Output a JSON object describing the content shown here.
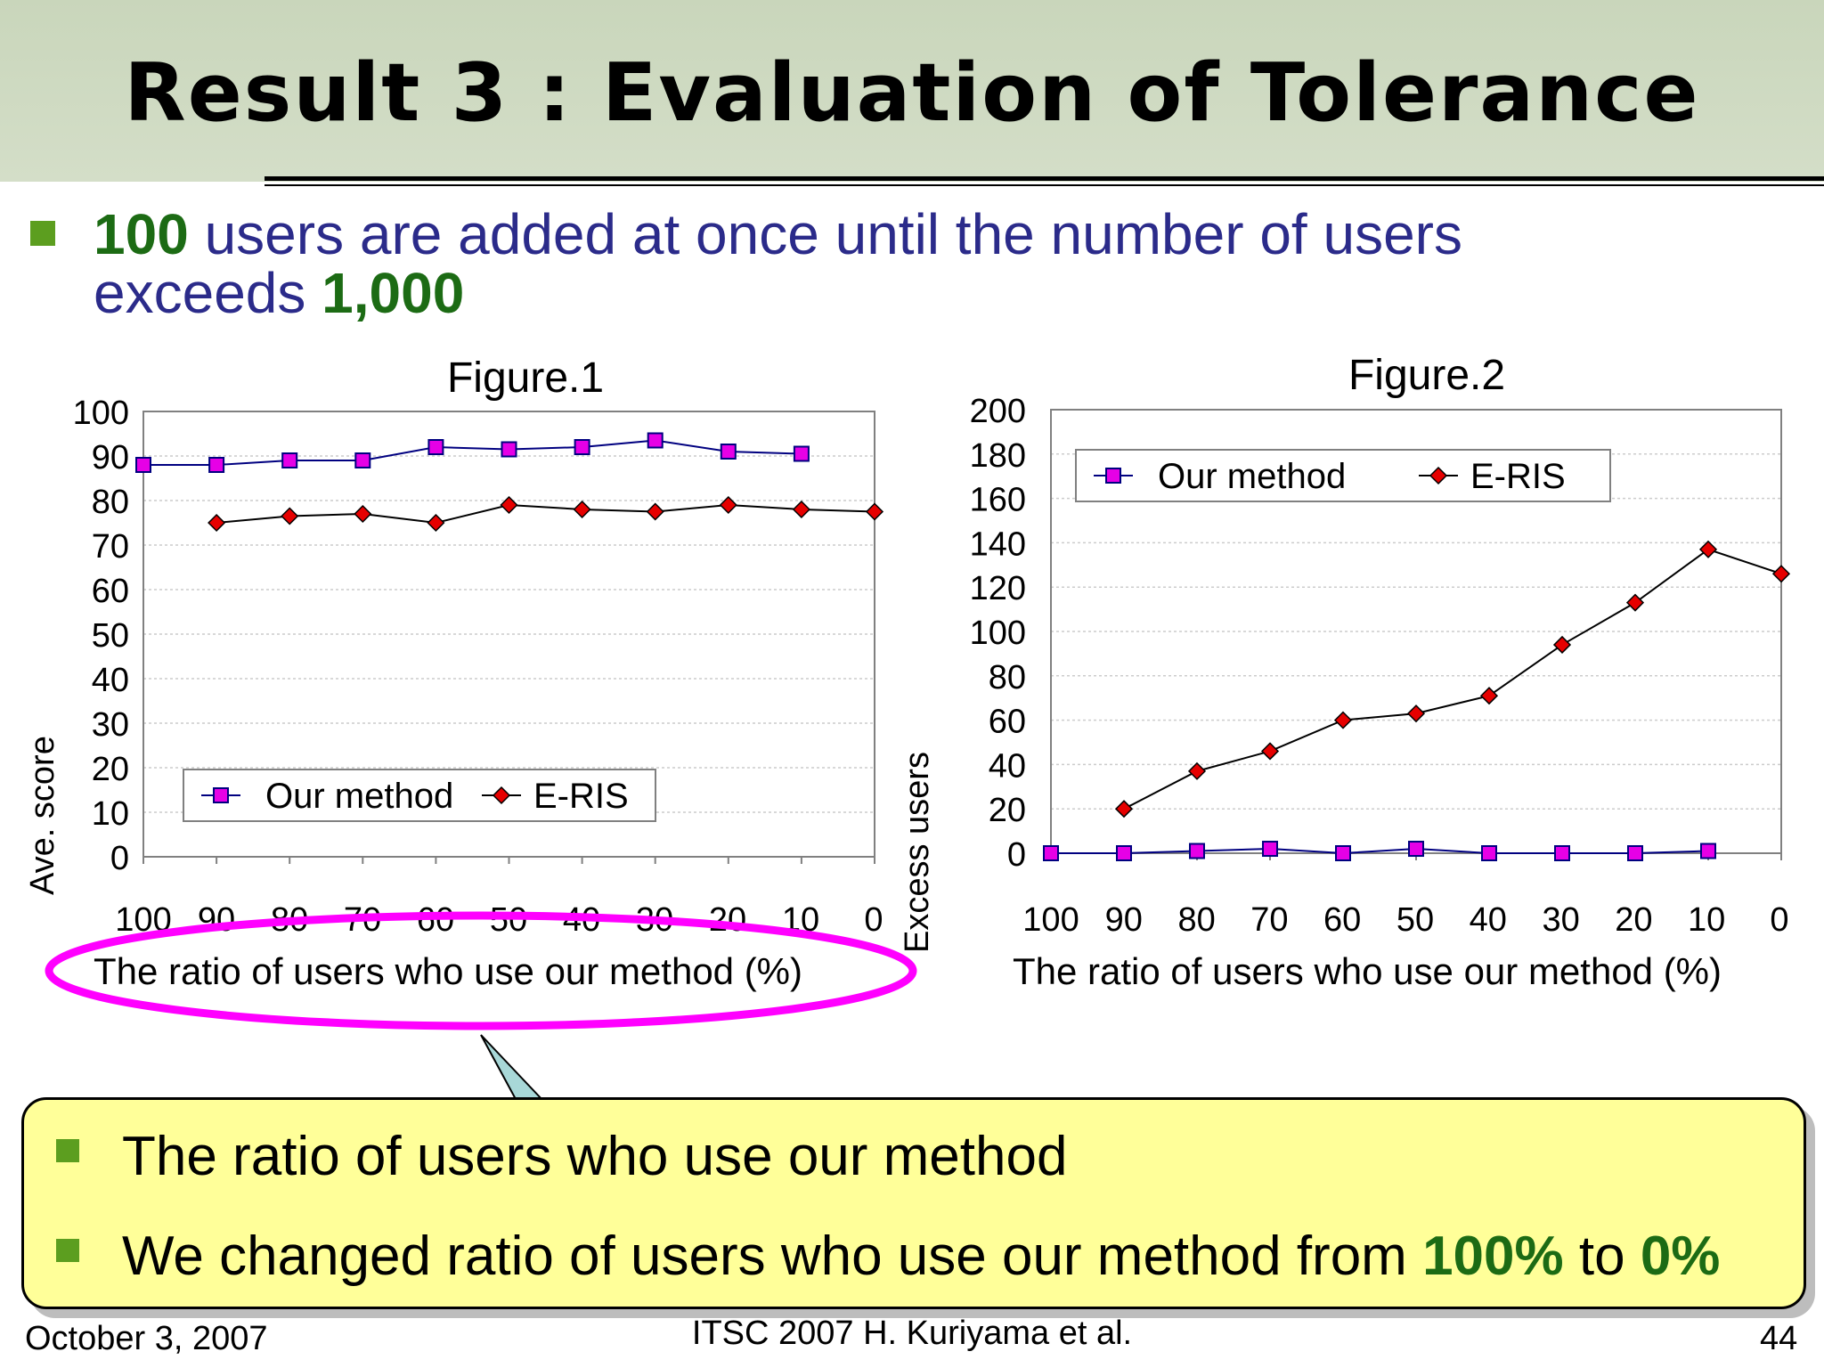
{
  "title": "Result 3 : Evaluation of Tolerance",
  "intro": {
    "num1": "100",
    "text1": " users are added at once until the number of users",
    "text2": "exceeds ",
    "num2": "1,000"
  },
  "chart_data": [
    {
      "type": "line",
      "title": "Figure.1",
      "xlabel": "The ratio of users who use our method (%)",
      "ylabel": "Ave. score",
      "categories": [
        "100",
        "90",
        "80",
        "70",
        "60",
        "50",
        "40",
        "30",
        "20",
        "10",
        "0"
      ],
      "ylim": [
        0,
        100
      ],
      "yticks": [
        "0",
        "10",
        "20",
        "30",
        "40",
        "50",
        "60",
        "70",
        "80",
        "90",
        "100"
      ],
      "grid": true,
      "legend": "bottom-left",
      "series": [
        {
          "name": "Our method",
          "values": [
            88,
            88,
            89,
            89,
            92,
            91.5,
            92,
            93.5,
            91,
            90.5,
            null
          ],
          "color": "#e600e6"
        },
        {
          "name": "E-RIS",
          "values": [
            null,
            75,
            76.5,
            77,
            75,
            79,
            78,
            77.5,
            79,
            78,
            77.5
          ],
          "color": "#e60000"
        }
      ]
    },
    {
      "type": "line",
      "title": "Figure.2",
      "xlabel": "The ratio of users who use our method (%)",
      "ylabel": "Excess users",
      "categories": [
        "100",
        "90",
        "80",
        "70",
        "60",
        "50",
        "40",
        "30",
        "20",
        "10",
        "0"
      ],
      "ylim": [
        0,
        200
      ],
      "yticks": [
        "0",
        "20",
        "40",
        "60",
        "80",
        "100",
        "120",
        "140",
        "160",
        "180",
        "200"
      ],
      "grid": true,
      "legend": "top-left",
      "series": [
        {
          "name": "Our method",
          "values": [
            0,
            0,
            1,
            2,
            0,
            2,
            0,
            0,
            0,
            1,
            null
          ],
          "color": "#e600e6"
        },
        {
          "name": "E-RIS",
          "values": [
            null,
            20,
            37,
            46,
            60,
            63,
            71,
            94,
            113,
            137,
            126
          ],
          "color": "#e60000"
        }
      ]
    }
  ],
  "callout": {
    "line1": "The ratio of users who use our method",
    "line2_pre": "We changed ratio of users who use our method from ",
    "line2_from": "100%",
    "line2_mid": " to ",
    "line2_to": "0%"
  },
  "footer": {
    "date": "October 3, 2007",
    "conference": "ITSC 2007 H. Kuriyama et al.",
    "page": "44"
  },
  "colors": {
    "title_band": "#cfdac3",
    "bullet": "#5c9e1f",
    "intro_text": "#2b2b8a",
    "highlight": "#1c6b14",
    "callout_bg": "#ffff99",
    "ellipse": "#ff00ff"
  }
}
